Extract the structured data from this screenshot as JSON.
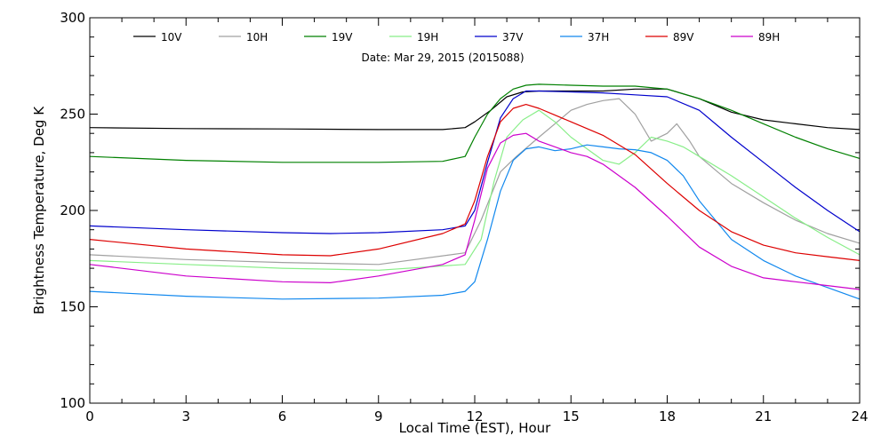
{
  "chart_data": {
    "type": "line",
    "annotation": "Date: Mar 29, 2015 (2015088)",
    "xlabel": "Local Time (EST), Hour",
    "ylabel": "Brightness Temperature, Deg K",
    "xlim": [
      0,
      24
    ],
    "ylim": [
      100,
      300
    ],
    "xticks": [
      0,
      3,
      6,
      9,
      12,
      15,
      18,
      21,
      24
    ],
    "yticks": [
      100,
      150,
      200,
      250,
      300
    ],
    "grid": false,
    "legend_position": "top",
    "series": [
      {
        "name": "10V",
        "color": "#000000",
        "x": [
          0,
          3,
          6,
          9,
          11,
          11.7,
          12,
          12.5,
          13,
          13.5,
          14,
          15,
          16,
          17,
          18,
          19,
          20,
          21,
          22,
          23,
          24
        ],
        "y": [
          243,
          242.5,
          242.3,
          242,
          242,
          243,
          246,
          252,
          259,
          261.5,
          262,
          262,
          262,
          263,
          263,
          258,
          251,
          247,
          245,
          243,
          242
        ]
      },
      {
        "name": "10H",
        "color": "#a0a0a0",
        "x": [
          0,
          3,
          6,
          9,
          11.7,
          12.2,
          12.8,
          13.3,
          14,
          14.5,
          15,
          15.5,
          16,
          16.5,
          17,
          17.5,
          18,
          18.3,
          18.7,
          19,
          20,
          21,
          22,
          23,
          24
        ],
        "y": [
          177,
          174.5,
          173,
          172,
          178,
          195,
          220,
          228,
          238,
          245,
          252,
          255,
          257,
          258,
          250,
          236,
          240,
          245,
          236,
          228,
          214,
          204,
          195,
          188,
          183
        ]
      },
      {
        "name": "19V",
        "color": "#008000",
        "x": [
          0,
          3,
          6,
          9,
          11,
          11.7,
          12,
          12.4,
          12.8,
          13.2,
          13.6,
          14,
          15,
          16,
          17,
          18,
          19,
          20,
          21,
          22,
          23,
          24
        ],
        "y": [
          228,
          226,
          225,
          225,
          225.5,
          228,
          238,
          250,
          258,
          263,
          265,
          265.5,
          265,
          264.5,
          264.5,
          263,
          258,
          252,
          245,
          238,
          232,
          227
        ]
      },
      {
        "name": "19H",
        "color": "#88ee88",
        "x": [
          0,
          3,
          6,
          9,
          11.7,
          12.2,
          12.6,
          13,
          13.5,
          14,
          14.5,
          15,
          15.5,
          16,
          16.5,
          17,
          17.5,
          18,
          18.5,
          19,
          20,
          21,
          22,
          23,
          24
        ],
        "y": [
          174,
          172,
          170,
          169,
          172,
          185,
          215,
          238,
          247,
          252,
          246,
          238,
          232,
          226,
          224,
          230,
          238,
          236,
          233,
          228,
          218,
          207,
          196,
          186,
          177
        ]
      },
      {
        "name": "37V",
        "color": "#0000cc",
        "x": [
          0,
          3,
          6,
          7.5,
          9,
          11,
          11.7,
          12,
          12.4,
          12.8,
          13.2,
          13.6,
          14,
          15,
          16,
          17,
          18,
          19,
          20,
          21,
          22,
          23,
          24
        ],
        "y": [
          192,
          190,
          188.5,
          188,
          188.5,
          190,
          192,
          200,
          225,
          248,
          258,
          262,
          262,
          261.5,
          261,
          260,
          259,
          252,
          238,
          225,
          212,
          200,
          189
        ]
      },
      {
        "name": "37H",
        "color": "#1188ee",
        "x": [
          0,
          3,
          6,
          9,
          11,
          11.7,
          12,
          12.4,
          12.8,
          13.2,
          13.6,
          14,
          14.5,
          15,
          15.5,
          16,
          16.5,
          17,
          17.5,
          18,
          18.5,
          19,
          20,
          21,
          22,
          23,
          24
        ],
        "y": [
          158,
          155.5,
          154,
          154.5,
          156,
          158,
          163,
          185,
          210,
          226,
          232,
          233,
          231,
          232,
          234,
          233,
          232,
          231.5,
          230,
          226,
          218,
          205,
          185,
          174,
          166,
          160,
          154
        ]
      },
      {
        "name": "89V",
        "color": "#dd0000",
        "x": [
          0,
          3,
          6,
          7.5,
          9,
          11,
          11.7,
          12,
          12.4,
          12.8,
          13.2,
          13.6,
          14,
          15,
          16,
          17,
          18,
          19,
          20,
          21,
          22,
          23,
          24
        ],
        "y": [
          185,
          180,
          177,
          176.5,
          180,
          188,
          193,
          205,
          228,
          246,
          253,
          255,
          253,
          246,
          239,
          229,
          214,
          200,
          189,
          182,
          178,
          176,
          174
        ]
      },
      {
        "name": "89H",
        "color": "#cc00cc",
        "x": [
          0,
          3,
          6,
          7.5,
          9,
          10,
          11,
          11.7,
          12,
          12.4,
          12.8,
          13.2,
          13.6,
          14,
          15,
          15.5,
          16,
          17,
          18,
          19,
          20,
          21,
          22,
          23,
          24
        ],
        "y": [
          172,
          166,
          163,
          162.5,
          166,
          169,
          172,
          177,
          195,
          222,
          235,
          239,
          240,
          236,
          230,
          228,
          224,
          212,
          197,
          181,
          171,
          165,
          163,
          161,
          159
        ]
      }
    ]
  }
}
